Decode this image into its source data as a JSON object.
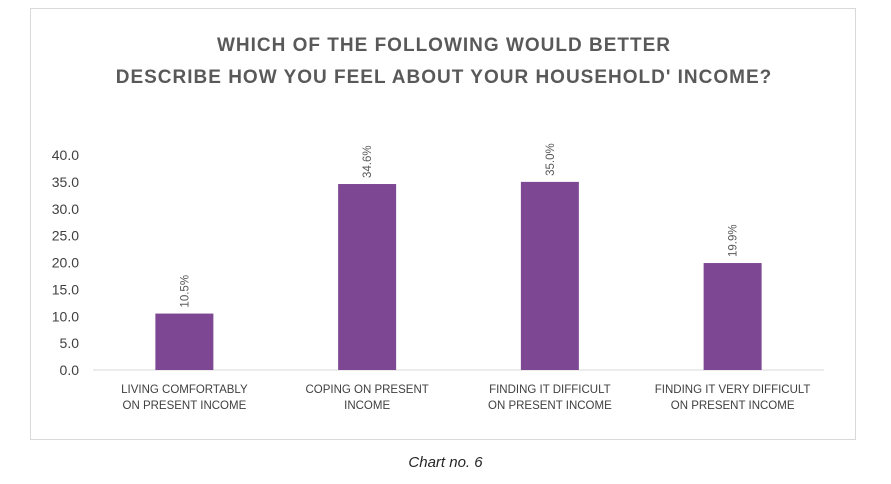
{
  "chart_data": {
    "type": "bar",
    "title_lines": [
      "WHICH OF THE FOLLOWING WOULD BETTER",
      "DESCRIBE HOW YOU FEEL ABOUT YOUR HOUSEHOLD' INCOME?"
    ],
    "categories": [
      [
        "LIVING COMFORTABLY",
        "ON PRESENT  INCOME"
      ],
      [
        "COPING ON PRESENT",
        "INCOME"
      ],
      [
        "FINDING IT DIFFICULT",
        "ON PRESENT  INCOME"
      ],
      [
        "FINDING IT VERY DIFFICULT",
        "ON PRESENT  INCOME"
      ]
    ],
    "values": [
      10.5,
      34.6,
      35.0,
      19.9
    ],
    "data_labels": [
      "10.5%",
      "34.6%",
      "35.0%",
      "19.9%"
    ],
    "ylim": [
      0,
      40
    ],
    "yticks": [
      "0.0",
      "5.0",
      "10.0",
      "15.0",
      "20.0",
      "25.0",
      "30.0",
      "35.0",
      "40.0"
    ],
    "grid": false,
    "legend": "none",
    "bar_color": "#7e4794",
    "xlabel": "",
    "ylabel": ""
  },
  "caption": "Chart no. 6"
}
